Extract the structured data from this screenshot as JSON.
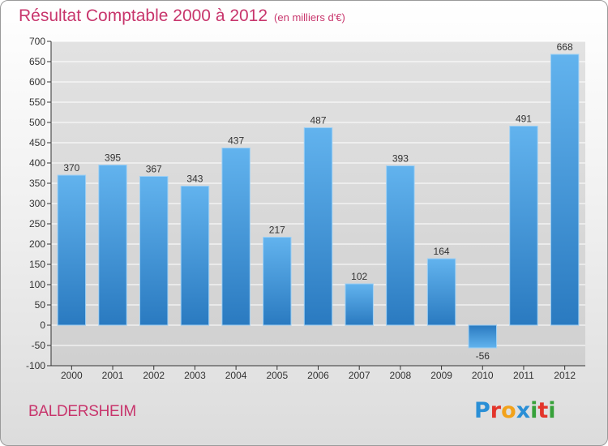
{
  "header": {
    "title": "Résultat Comptable 2000 à 2012",
    "subtitle": "(en milliers d'€)"
  },
  "footer": {
    "commune": "BALDERSHEIM",
    "logo_letters": [
      "P",
      "r",
      "o",
      "x",
      "i",
      "t",
      "i"
    ],
    "logo_colors": [
      "#2a8fd6",
      "#e3352b",
      "#f2a21b",
      "#2a8fd6",
      "#37a13a",
      "#e3352b",
      "#37a13a"
    ]
  },
  "colors": {
    "title": "#c8356c",
    "bar_light": "#62b3ee",
    "bar_dark": "#2a7ac0",
    "grid": "#ffffff",
    "axis": "#333333"
  },
  "chart_data": {
    "type": "bar",
    "title": "Résultat Comptable 2000 à 2012",
    "subtitle": "(en milliers d'€)",
    "categories": [
      "2000",
      "2001",
      "2002",
      "2003",
      "2004",
      "2005",
      "2006",
      "2007",
      "2008",
      "2009",
      "2010",
      "2011",
      "2012"
    ],
    "values": [
      370,
      395,
      367,
      343,
      437,
      217,
      487,
      102,
      393,
      164,
      -56,
      491,
      668
    ],
    "ylim": [
      -100,
      700
    ],
    "yticks": [
      -100,
      -50,
      0,
      50,
      100,
      150,
      200,
      250,
      300,
      350,
      400,
      450,
      500,
      550,
      600,
      650,
      700
    ],
    "grid": true,
    "data_labels": true
  }
}
